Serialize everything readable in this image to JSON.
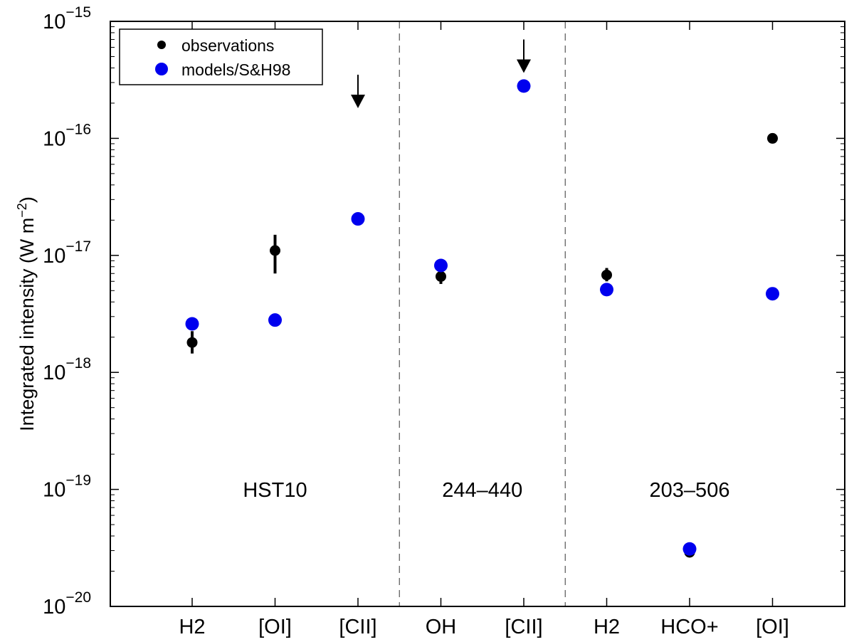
{
  "chart_data": {
    "type": "scatter",
    "title": "",
    "xlabel": "",
    "ylabel": "Integrated intensity (W m",
    "ylabel_sup": "−2",
    "ylabel_close": ")",
    "yscale": "log",
    "ylim": [
      1e-20,
      1e-15
    ],
    "y_ticks": [
      {
        "value": 1e-20,
        "base": "10",
        "exp": "−20"
      },
      {
        "value": 1e-19,
        "base": "10",
        "exp": "−19"
      },
      {
        "value": 1e-18,
        "base": "10",
        "exp": "−18"
      },
      {
        "value": 1e-17,
        "base": "10",
        "exp": "−17"
      },
      {
        "value": 1e-16,
        "base": "10",
        "exp": "−16"
      },
      {
        "value": 1e-15,
        "base": "10",
        "exp": "−15"
      }
    ],
    "categories": [
      "H2",
      "[OI]",
      "[CII]",
      "OH",
      "[CII]",
      "H2",
      "HCO+",
      "[OI]"
    ],
    "groups": [
      {
        "label": "HST10",
        "from": 0,
        "to": 2
      },
      {
        "label": "244–440",
        "from": 3,
        "to": 4
      },
      {
        "label": "203–506",
        "from": 5,
        "to": 7
      }
    ],
    "series": [
      {
        "name": "observations",
        "color": "#000000",
        "points": [
          {
            "i": 0,
            "y": 1.8e-18,
            "err_low": 1.45e-18,
            "err_high": 2.25e-18
          },
          {
            "i": 1,
            "y": 1.1e-17,
            "err_low": 7e-18,
            "err_high": 1.5e-17
          },
          {
            "i": 2,
            "upper_limit": 3.5e-16
          },
          {
            "i": 3,
            "y": 6.6e-18,
            "err_low": 5.7e-18,
            "err_high": 7.4e-18
          },
          {
            "i": 4,
            "upper_limit": 7e-16
          },
          {
            "i": 5,
            "y": 6.8e-18,
            "err_low": 6e-18,
            "err_high": 7.8e-18
          },
          {
            "i": 6,
            "y": 2.9e-20,
            "err_low": 2.65e-20,
            "err_high": 3.15e-20
          },
          {
            "i": 7,
            "y": 1e-16
          }
        ]
      },
      {
        "name": "models/S&H98",
        "color": "#0000ee",
        "points": [
          {
            "i": 0,
            "y": 2.6e-18
          },
          {
            "i": 1,
            "y": 2.8e-18
          },
          {
            "i": 2,
            "y": 2.05e-17
          },
          {
            "i": 3,
            "y": 8.2e-18
          },
          {
            "i": 4,
            "y": 2.8e-16
          },
          {
            "i": 5,
            "y": 5.1e-18
          },
          {
            "i": 6,
            "y": 3.1e-20
          },
          {
            "i": 7,
            "y": 4.7e-18
          }
        ]
      }
    ],
    "legend": {
      "position": "top-left",
      "entries": [
        "observations",
        "models/S&H98"
      ]
    }
  }
}
